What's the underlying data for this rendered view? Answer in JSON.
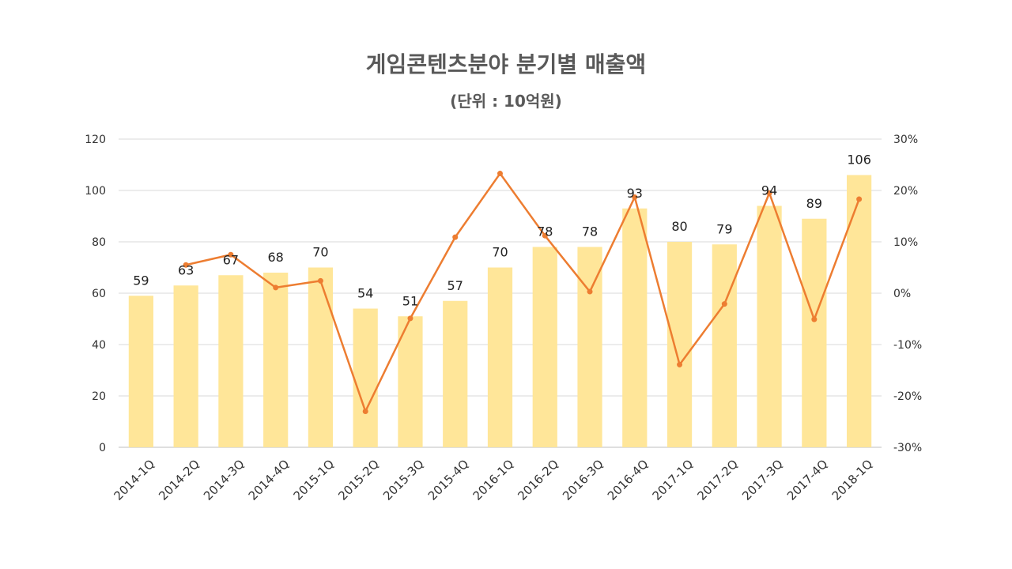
{
  "chart_data": {
    "type": "bar",
    "title": "게임콘텐츠분야 분기별 매출액",
    "subtitle": "(단위 : 10억원)",
    "categories": [
      "2014-1Q",
      "2014-2Q",
      "2014-3Q",
      "2014-4Q",
      "2015-1Q",
      "2015-2Q",
      "2015-3Q",
      "2015-4Q",
      "2016-1Q",
      "2016-2Q",
      "2016-3Q",
      "2016-4Q",
      "2017-1Q",
      "2017-2Q",
      "2017-3Q",
      "2017-4Q",
      "2018-1Q"
    ],
    "series": [
      {
        "type": "bar",
        "axis": "left",
        "color": "#FFE699",
        "values": [
          59,
          63,
          67,
          68,
          70,
          54,
          51,
          57,
          70,
          78,
          78,
          93,
          80,
          79,
          94,
          89,
          106
        ],
        "labels": [
          "59",
          "63",
          "67",
          "68",
          "70",
          "54",
          "51",
          "57",
          "70",
          "78",
          "78",
          "93",
          "80",
          "79",
          "94",
          "89",
          "106"
        ]
      },
      {
        "type": "line",
        "axis": "right",
        "color": "#ED7D31",
        "unit": "%",
        "values": [
          null,
          5.5,
          7.5,
          1.1,
          2.4,
          -23.0,
          -4.9,
          10.9,
          23.3,
          11.2,
          0.3,
          18.7,
          -13.9,
          -2.1,
          19.5,
          -5.1,
          18.3
        ]
      }
    ],
    "ylim": [
      0,
      120
    ],
    "y_ticks": [
      "0",
      "20",
      "40",
      "60",
      "80",
      "100",
      "120"
    ],
    "y2lim": [
      -30,
      30
    ],
    "y2_ticks": [
      "-30%",
      "-20%",
      "-10%",
      "0%",
      "10%",
      "20%",
      "30%"
    ],
    "grid": true,
    "legend": "none"
  }
}
